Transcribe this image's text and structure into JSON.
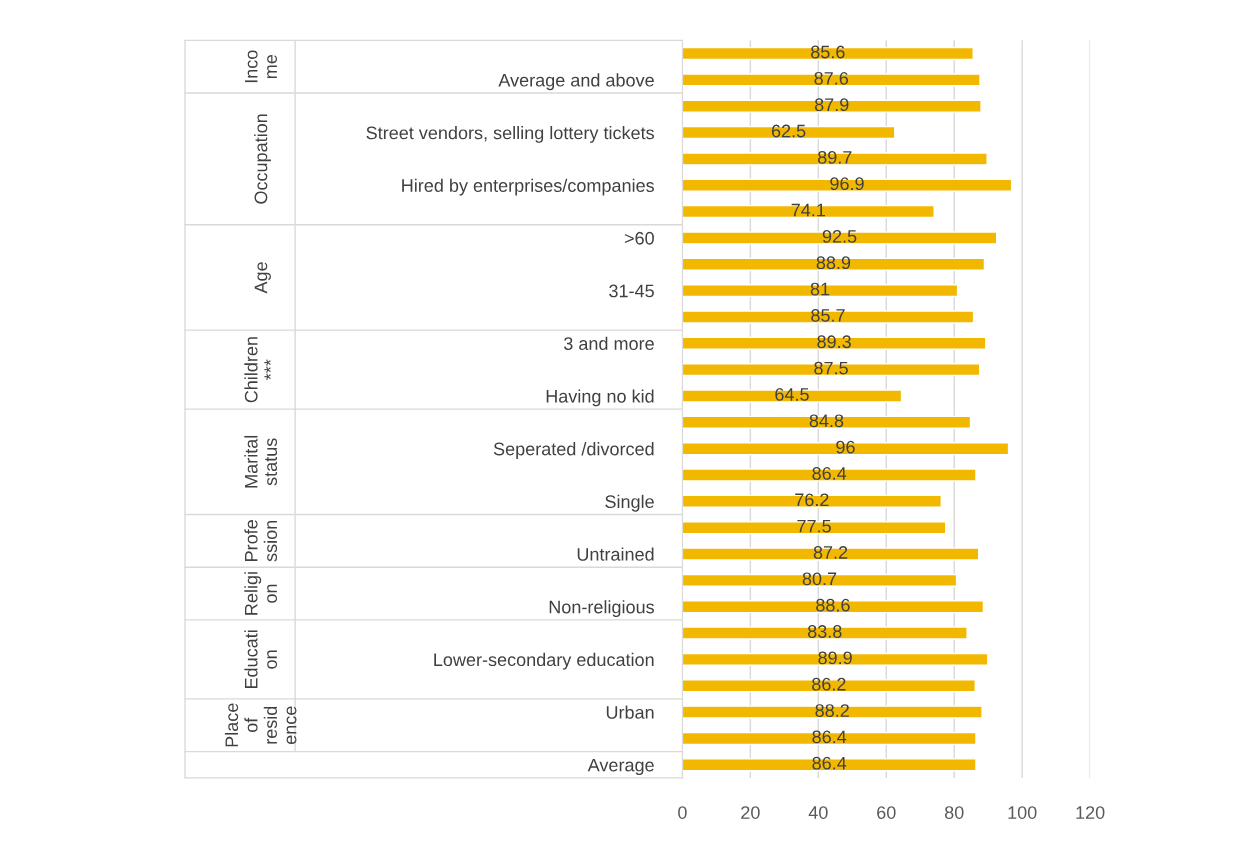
{
  "chart_data": {
    "type": "bar",
    "orientation": "horizontal",
    "categories": [
      null,
      "Average and above",
      null,
      "Street vendors, selling lottery tickets",
      null,
      "Hired by enterprises/companies",
      null,
      ">60",
      null,
      "31-45",
      null,
      "3 and more",
      null,
      "Having no kid",
      null,
      "Seperated /divorced",
      null,
      "Single",
      null,
      "Untrained",
      null,
      "Non-religious",
      null,
      "Lower-secondary education",
      null,
      "Urban",
      null,
      "Average"
    ],
    "values": [
      85.6,
      87.6,
      87.9,
      62.5,
      89.7,
      96.9,
      74.1,
      92.5,
      88.9,
      81,
      85.7,
      89.3,
      87.5,
      64.5,
      84.8,
      96,
      86.4,
      76.2,
      77.5,
      87.2,
      80.7,
      88.6,
      83.8,
      89.9,
      86.2,
      88.2,
      86.4,
      86.4
    ],
    "color": "#f2b800",
    "data_labels": true,
    "xlim": [
      0,
      120
    ],
    "xticks": [
      0,
      20,
      40,
      60,
      80,
      100,
      120
    ],
    "grid": "x",
    "legend": false,
    "annotations": [
      "Inco\nme",
      "Occupation",
      "Age",
      "Children\n***",
      "Marital\nstatus",
      "Profe\nssion",
      "Religi\non",
      "Educati\non",
      "Place\nof\nresid\nence"
    ]
  }
}
